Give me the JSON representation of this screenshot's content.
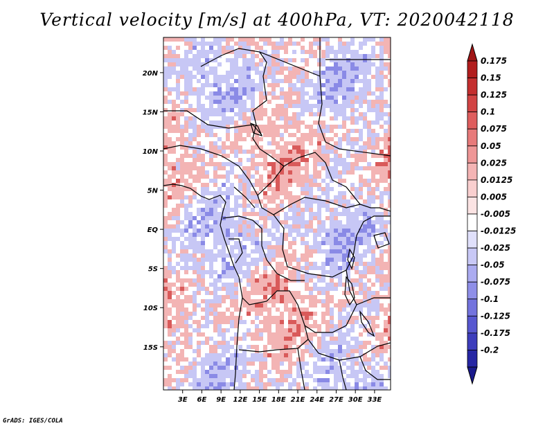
{
  "title": "Vertical velocity [m/s] at 400hPa, VT: 2020042118",
  "credit": "GrADS: IGES/COLA",
  "chart_data": {
    "type": "heatmap",
    "title": "Vertical velocity [m/s] at 400hPa, VT: 2020042118",
    "variable": "Vertical velocity",
    "units": "m/s",
    "level": "400hPa",
    "valid_time": "2020042118",
    "lon_range": [
      0,
      35.5
    ],
    "lat_range": [
      -20.5,
      24.5
    ],
    "x_ticks": [
      {
        "value": 3,
        "label": "3E"
      },
      {
        "value": 6,
        "label": "6E"
      },
      {
        "value": 9,
        "label": "9E"
      },
      {
        "value": 12,
        "label": "12E"
      },
      {
        "value": 15,
        "label": "15E"
      },
      {
        "value": 18,
        "label": "18E"
      },
      {
        "value": 21,
        "label": "21E"
      },
      {
        "value": 24,
        "label": "24E"
      },
      {
        "value": 27,
        "label": "27E"
      },
      {
        "value": 30,
        "label": "30E"
      },
      {
        "value": 33,
        "label": "33E"
      }
    ],
    "y_ticks": [
      {
        "value": 20,
        "label": "20N"
      },
      {
        "value": 15,
        "label": "15N"
      },
      {
        "value": 10,
        "label": "10N"
      },
      {
        "value": 5,
        "label": "5N"
      },
      {
        "value": 0,
        "label": "EQ"
      },
      {
        "value": -5,
        "label": "5S"
      },
      {
        "value": -10,
        "label": "10S"
      },
      {
        "value": -15,
        "label": "15S"
      }
    ],
    "colorbar": {
      "levels": [
        {
          "label": "0.175",
          "color": "#b21d1d"
        },
        {
          "label": "0.15",
          "color": "#c42f2f"
        },
        {
          "label": "0.125",
          "color": "#d24444"
        },
        {
          "label": "0.1",
          "color": "#df5e5e"
        },
        {
          "label": "0.075",
          "color": "#e77a7a"
        },
        {
          "label": "0.05",
          "color": "#ee9696"
        },
        {
          "label": "0.025",
          "color": "#f4b4b4"
        },
        {
          "label": "0.0125",
          "color": "#f9cfcf"
        },
        {
          "label": "0.005",
          "color": "#fbe3e3"
        },
        {
          "label": "-0.005",
          "color": "#ffffff"
        },
        {
          "label": "-0.0125",
          "color": "#e0e0fb"
        },
        {
          "label": "-0.025",
          "color": "#c8c8f6"
        },
        {
          "label": "-0.05",
          "color": "#ababf0"
        },
        {
          "label": "-0.075",
          "color": "#8f8fe8"
        },
        {
          "label": "-0.1",
          "color": "#7373de"
        },
        {
          "label": "-0.125",
          "color": "#5757d0"
        },
        {
          "label": "-0.175",
          "color": "#3d3dbc"
        },
        {
          "label": "-0.2",
          "color": "#2626a4"
        }
      ],
      "over_color": "#a01515",
      "under_color": "#1a1a8c"
    },
    "field_colors": {
      "rising_strong": "#d95a5a",
      "rising_weak": "#f3b4b4",
      "sinking_weak": "#c7c7f5",
      "sinking_strong": "#8a8ae6",
      "neutral": "#ffffff"
    }
  }
}
